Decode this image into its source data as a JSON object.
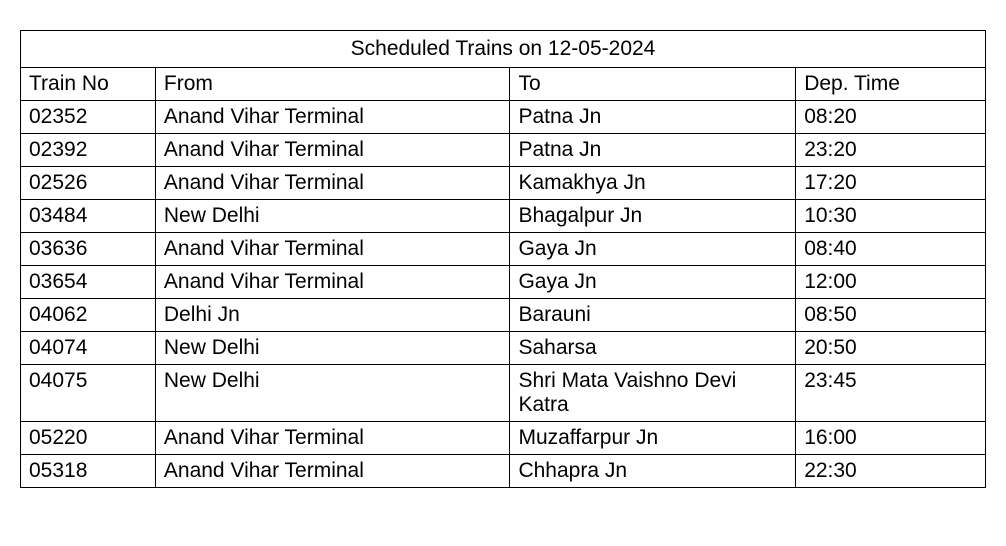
{
  "table": {
    "title": "Scheduled Trains on 12-05-2024",
    "columns": [
      "Train No",
      "From",
      "To",
      "Dep. Time"
    ],
    "rows": [
      [
        "02352",
        "Anand Vihar Terminal",
        "Patna Jn",
        "08:20"
      ],
      [
        "02392",
        "Anand Vihar Terminal",
        "Patna Jn",
        "23:20"
      ],
      [
        "02526",
        "Anand Vihar Terminal",
        "Kamakhya Jn",
        "17:20"
      ],
      [
        "03484",
        "New Delhi",
        "Bhagalpur Jn",
        "10:30"
      ],
      [
        "03636",
        "Anand Vihar Terminal",
        "Gaya Jn",
        "08:40"
      ],
      [
        "03654",
        "Anand Vihar Terminal",
        "Gaya Jn",
        "12:00"
      ],
      [
        "04062",
        "Delhi Jn",
        "Barauni",
        "08:50"
      ],
      [
        "04074",
        "New Delhi",
        "Saharsa",
        "20:50"
      ],
      [
        "04075",
        "New Delhi",
        "Shri Mata Vaishno Devi Katra",
        "23:45"
      ],
      [
        "05220",
        "Anand Vihar Terminal",
        "Muzaffarpur Jn",
        "16:00"
      ],
      [
        "05318",
        "Anand Vihar Terminal",
        "Chhapra Jn",
        "22:30"
      ]
    ],
    "border_color": "#000000",
    "background_color": "#ffffff",
    "text_color": "#000000",
    "font_size": 21
  }
}
